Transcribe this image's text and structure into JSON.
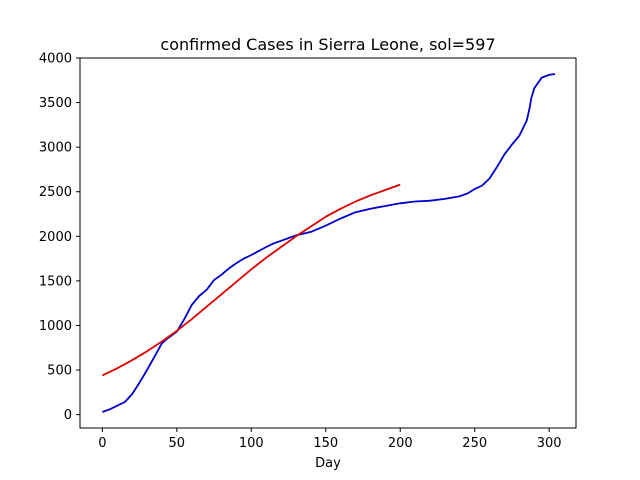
{
  "chart_data": {
    "type": "line",
    "title": "confirmed Cases in Sierra Leone, sol=597",
    "xlabel": "Day",
    "ylabel": "",
    "xlim": [
      -15,
      318
    ],
    "ylim": [
      -150,
      4000
    ],
    "xticks": [
      0,
      50,
      100,
      150,
      200,
      250,
      300
    ],
    "yticks": [
      0,
      500,
      1000,
      1500,
      2000,
      2500,
      3000,
      3500,
      4000
    ],
    "grid": false,
    "legend": "none",
    "series": [
      {
        "color": "#0000cc",
        "x": [
          0,
          5,
          10,
          15,
          20,
          25,
          30,
          35,
          40,
          42,
          45,
          50,
          55,
          60,
          65,
          70,
          75,
          80,
          85,
          90,
          95,
          100,
          110,
          115,
          120,
          130,
          140,
          150,
          160,
          170,
          180,
          190,
          200,
          210,
          220,
          230,
          240,
          245,
          250,
          255,
          260,
          265,
          270,
          275,
          280,
          285,
          287,
          288,
          290,
          295,
          300,
          304
        ],
        "y": [
          30,
          60,
          100,
          140,
          230,
          360,
          500,
          650,
          800,
          830,
          870,
          930,
          1070,
          1230,
          1330,
          1400,
          1510,
          1570,
          1640,
          1700,
          1750,
          1790,
          1880,
          1920,
          1950,
          2010,
          2050,
          2120,
          2200,
          2270,
          2310,
          2340,
          2370,
          2390,
          2400,
          2420,
          2450,
          2480,
          2530,
          2570,
          2650,
          2780,
          2920,
          3030,
          3130,
          3300,
          3450,
          3550,
          3660,
          3780,
          3810,
          3820
        ]
      },
      {
        "color": "#dd0000",
        "x": [
          0,
          10,
          20,
          30,
          40,
          50,
          60,
          70,
          80,
          90,
          100,
          110,
          120,
          130,
          140,
          150,
          160,
          170,
          180,
          190,
          200
        ],
        "y": [
          440,
          520,
          610,
          710,
          820,
          940,
          1070,
          1210,
          1350,
          1490,
          1630,
          1760,
          1880,
          2000,
          2110,
          2220,
          2310,
          2390,
          2460,
          2520,
          2580
        ]
      }
    ]
  }
}
